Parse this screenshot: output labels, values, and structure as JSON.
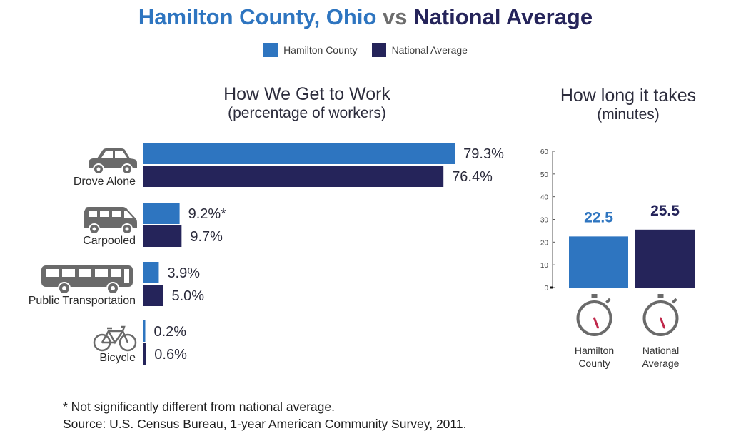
{
  "header": {
    "title_part1": "Hamilton County, Ohio",
    "title_part2": "vs",
    "title_part3": "National Average"
  },
  "legend": [
    {
      "label": "Hamilton County",
      "color": "#2e75c0"
    },
    {
      "label": "National Average",
      "color": "#25245a"
    }
  ],
  "colors": {
    "hamilton": "#2e75c0",
    "national": "#25245a",
    "icon": "#6a6a6a",
    "needle": "#c0284b"
  },
  "chart_data": [
    {
      "type": "bar",
      "orientation": "horizontal",
      "title": "How We Get to Work",
      "subtitle": "(percentage of workers)",
      "categories": [
        "Drove Alone",
        "Carpooled",
        "Public Transportation",
        "Bicycle"
      ],
      "icons": [
        "car-icon",
        "van-icon",
        "bus-icon",
        "bicycle-icon"
      ],
      "series": [
        {
          "name": "Hamilton County",
          "values": [
            79.3,
            9.2,
            3.9,
            0.2
          ],
          "labels": [
            "79.3%",
            "9.2%*",
            "3.9%",
            "0.2%"
          ]
        },
        {
          "name": "National Average",
          "values": [
            76.4,
            9.7,
            5.0,
            0.6
          ],
          "labels": [
            "76.4%",
            "9.7%",
            "5.0%",
            "0.6%"
          ]
        }
      ],
      "xlim": [
        0,
        100
      ],
      "grid": false
    },
    {
      "type": "bar",
      "title": "How long it takes",
      "subtitle": "(minutes)",
      "categories": [
        "Hamilton County",
        "National Average"
      ],
      "values": [
        22.5,
        25.5
      ],
      "data_labels": [
        "22.5",
        "25.5"
      ],
      "ylim": [
        0,
        60
      ],
      "yticks": [
        0,
        10,
        20,
        30,
        40,
        50,
        60
      ],
      "icons": [
        "stopwatch-icon",
        "stopwatch-icon"
      ],
      "grid": false
    }
  ],
  "footnotes": {
    "note": "* Not significantly different from national average.",
    "source": "Source: U.S. Census Bureau, 1-year American Community Survey, 2011."
  }
}
